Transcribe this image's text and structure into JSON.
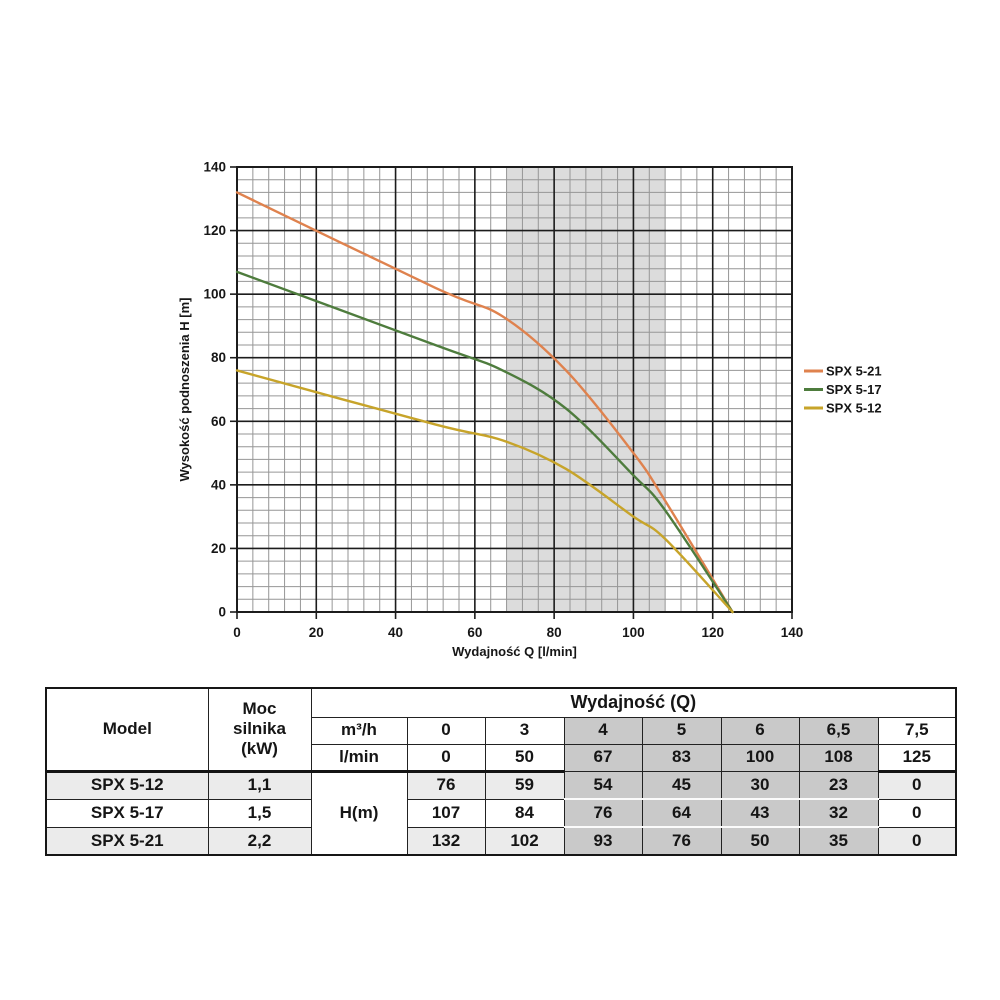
{
  "chart_data": {
    "type": "line",
    "title": "",
    "xlabel": "Wydajność Q [l/min]",
    "ylabel": "Wysokość podnoszenia H [m]",
    "xlim": [
      0,
      140
    ],
    "ylim": [
      0,
      140
    ],
    "x_ticks": [
      0,
      20,
      40,
      60,
      80,
      100,
      120,
      140
    ],
    "y_ticks": [
      0,
      20,
      40,
      60,
      80,
      100,
      120,
      140
    ],
    "x_tick_step": 20,
    "y_tick_step": 20,
    "minor_grid_step": 4,
    "grid": true,
    "legend_position": "right-outside",
    "highlight_band": {
      "from": 68,
      "to": 108
    },
    "x": [
      0,
      50,
      67,
      83,
      100,
      108,
      125
    ],
    "series": [
      {
        "name": "SPX 5-21",
        "color": "#df824e",
        "values": [
          132,
          102,
          93,
          76,
          50,
          35,
          0
        ]
      },
      {
        "name": "SPX 5-17",
        "color": "#4e7c3d",
        "values": [
          107,
          84,
          76,
          64,
          43,
          32,
          0
        ]
      },
      {
        "name": "SPX 5-12",
        "color": "#c7a42a",
        "values": [
          76,
          59,
          54,
          45,
          30,
          23,
          0
        ]
      }
    ],
    "colors": {
      "band": "#dcdcdc",
      "minor_grid": "#969696",
      "major_grid": "#1c1c1c",
      "text": "#161616"
    }
  },
  "table": {
    "model_label": "Model",
    "power_label": "Moc\nsilnika\n(kW)",
    "flow_group_label": "Wydajność (Q)",
    "unit_m3h": "m³/h",
    "unit_lmin": "l/min",
    "h_label": "H(m)",
    "m3h": [
      "0",
      "3",
      "4",
      "5",
      "6",
      "6,5",
      "7,5"
    ],
    "lmin": [
      "0",
      "50",
      "67",
      "83",
      "100",
      "108",
      "125"
    ],
    "rows": [
      {
        "model": "SPX 5-12",
        "power": "1,1",
        "h": [
          "76",
          "59",
          "54",
          "45",
          "30",
          "23",
          "0"
        ]
      },
      {
        "model": "SPX 5-17",
        "power": "1,5",
        "h": [
          "107",
          "84",
          "76",
          "64",
          "43",
          "32",
          "0"
        ]
      },
      {
        "model": "SPX 5-21",
        "power": "2,2",
        "h": [
          "132",
          "102",
          "93",
          "76",
          "50",
          "35",
          "0"
        ]
      }
    ]
  }
}
